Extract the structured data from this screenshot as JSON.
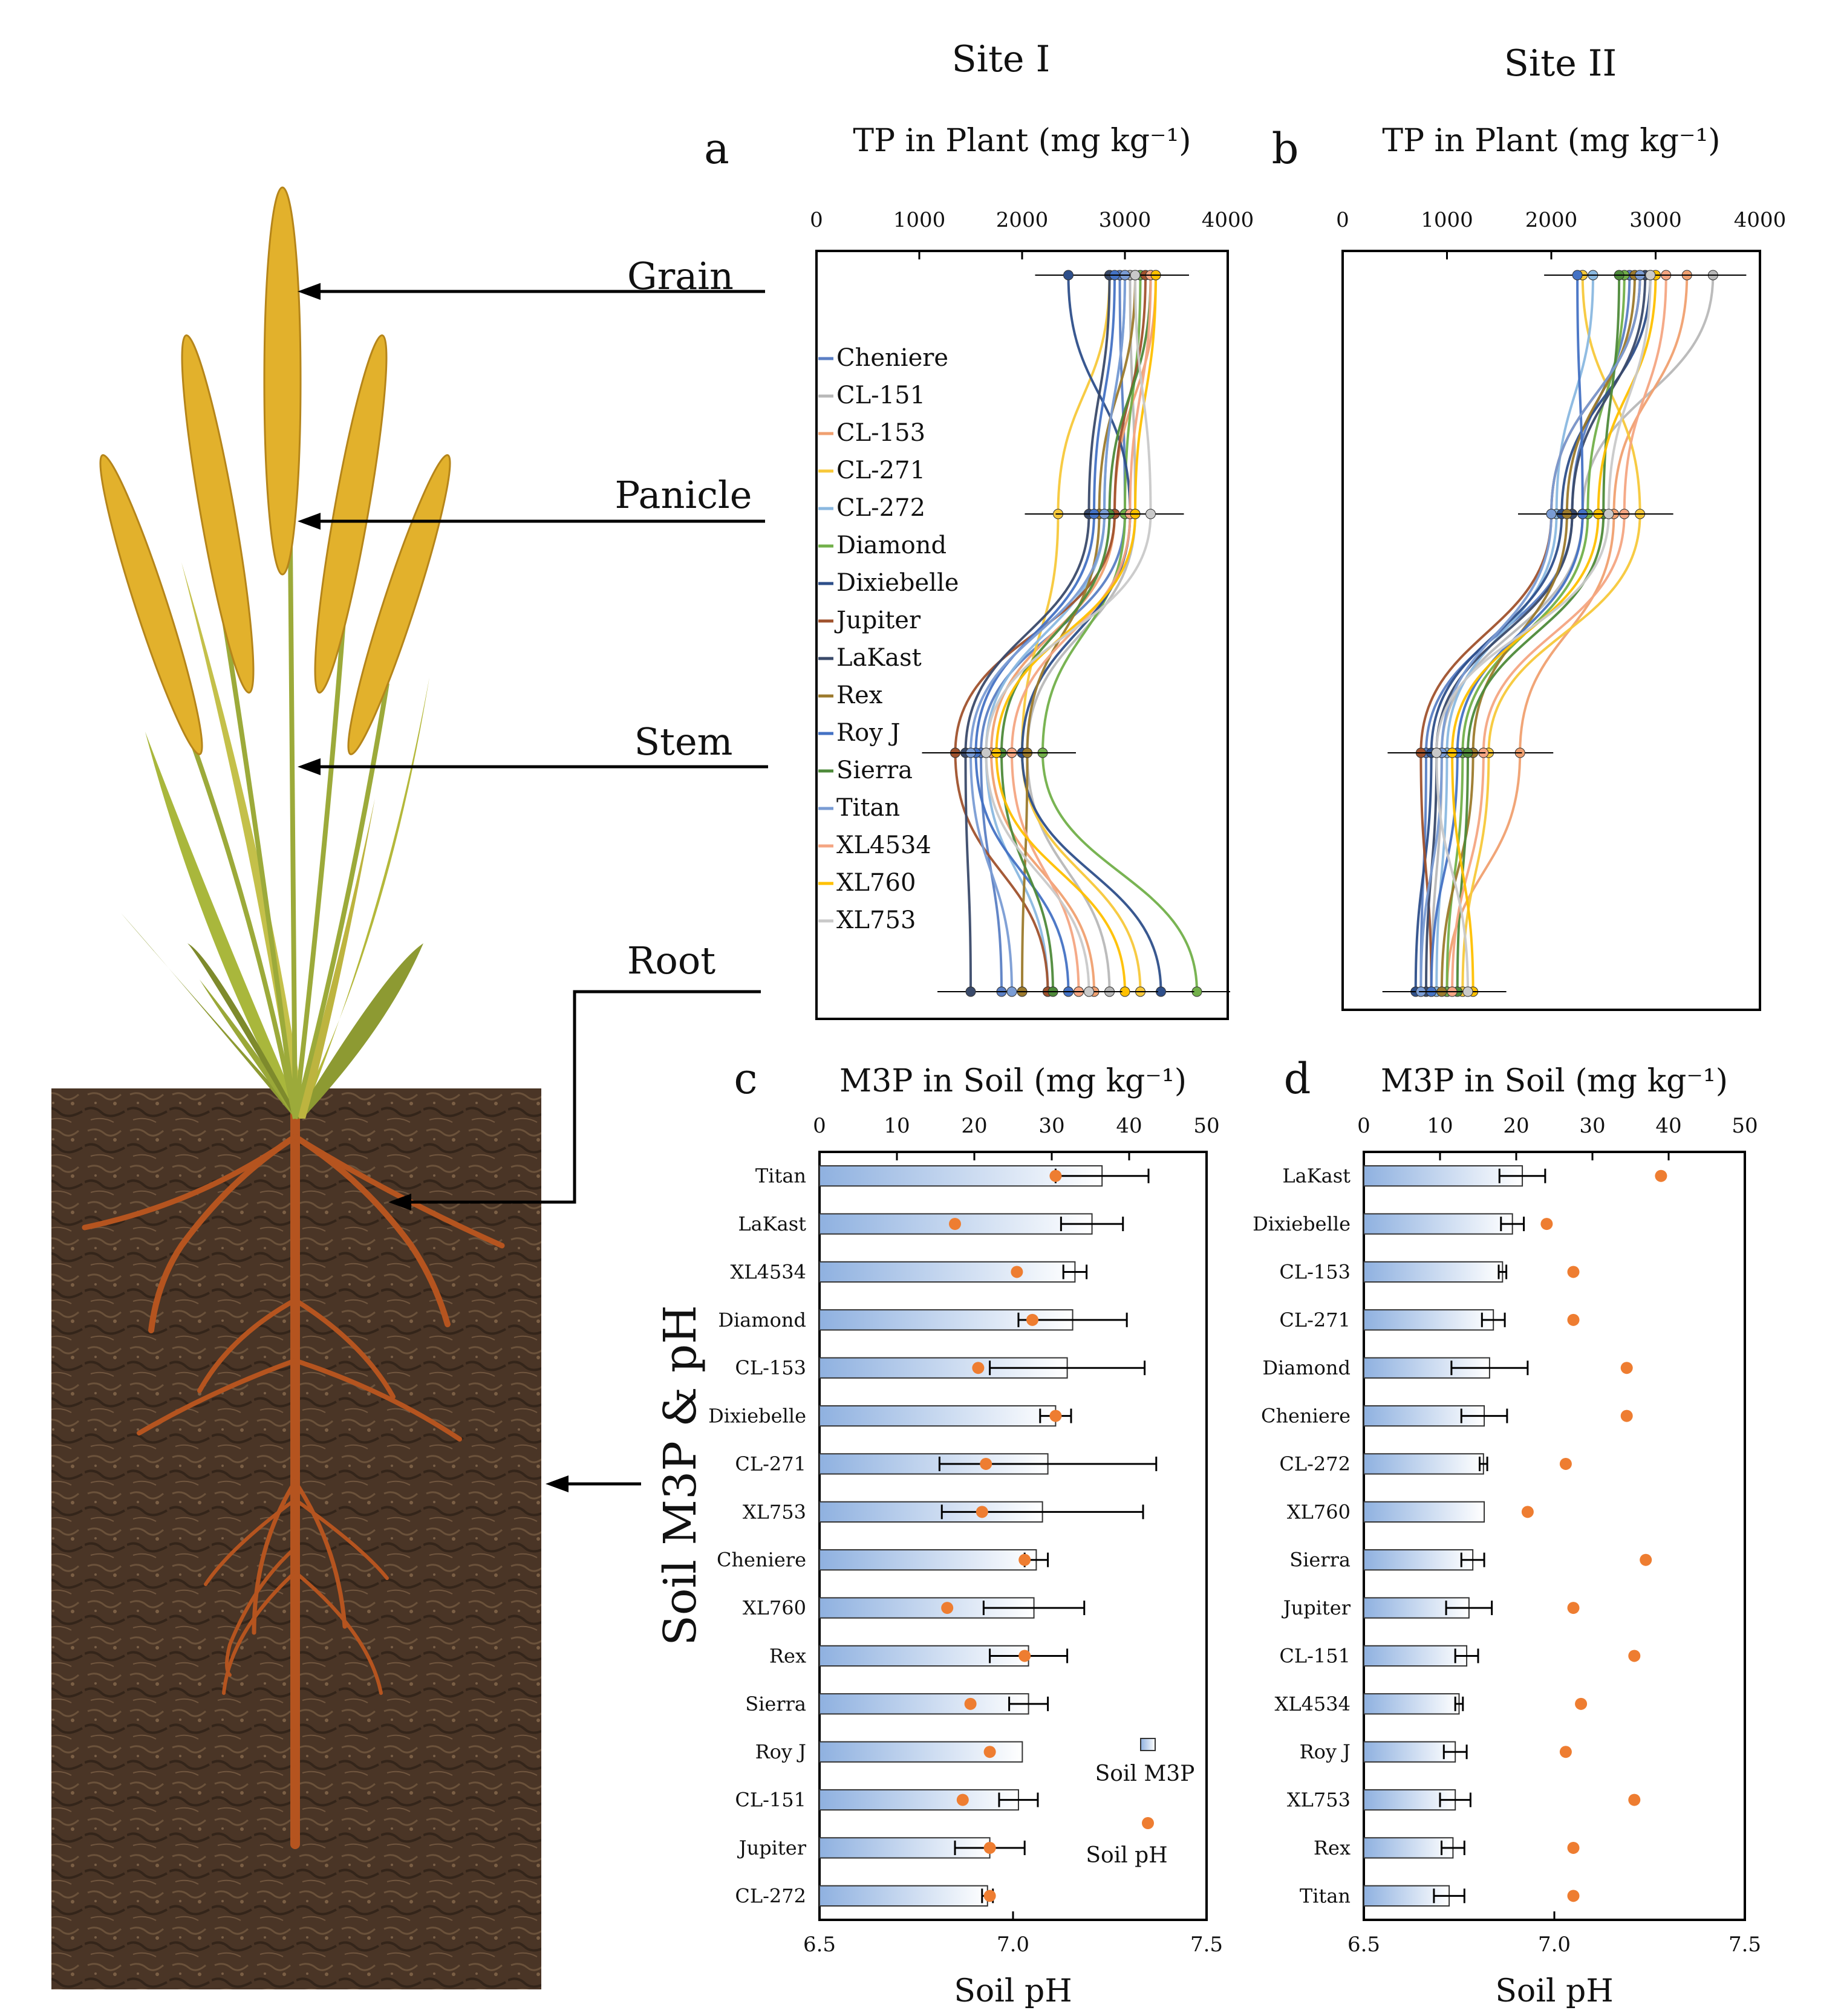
{
  "site_labels": [
    "Site I",
    "Site II"
  ],
  "organs": [
    "Grain",
    "Panicle",
    "Stem",
    "Root"
  ],
  "plant_illustration": {
    "icon": "rice-plant-with-roots-illustration"
  },
  "colors": {
    "bar_fill_start": "#8fb1e0",
    "bar_fill_end": "#ffffff",
    "ph_dot": "#ee7d31",
    "soil": "#4a3526",
    "root": "#b5541f",
    "grain": "#e2b12c",
    "leaf": "#a9b73c"
  },
  "chart_data": [
    {
      "id": "a",
      "panel_letter": "a",
      "type": "line",
      "title": "TP in Plant (mg kg⁻¹)",
      "x_axis": {
        "range": [
          0,
          4000
        ],
        "ticks": [
          0,
          1000,
          2000,
          3000,
          4000
        ],
        "position": "top"
      },
      "y_categories": [
        "Grain",
        "Panicle",
        "Stem",
        "Root"
      ],
      "legend": {
        "placement": "left-inside"
      },
      "series": [
        {
          "name": "Cheniere",
          "color": "#5b7fc4",
          "values": [
            2950,
            3000,
            1600,
            1800
          ]
        },
        {
          "name": "CL-151",
          "color": "#b8b8b8",
          "values": [
            3050,
            3100,
            2050,
            2850
          ]
        },
        {
          "name": "CL-153",
          "color": "#f0a070",
          "values": [
            3300,
            2900,
            1700,
            2700
          ]
        },
        {
          "name": "CL-271",
          "color": "#f7c83a",
          "values": [
            2850,
            2350,
            2000,
            3150
          ]
        },
        {
          "name": "CL-272",
          "color": "#8ab8e0",
          "values": [
            3000,
            2800,
            1650,
            2250
          ]
        },
        {
          "name": "Diamond",
          "color": "#72b04a",
          "values": [
            3150,
            3000,
            2200,
            3700
          ]
        },
        {
          "name": "Dixiebelle",
          "color": "#2e4f8a",
          "values": [
            2450,
            3050,
            2000,
            3350
          ]
        },
        {
          "name": "Jupiter",
          "color": "#a0522d",
          "values": [
            3200,
            2900,
            1350,
            2250
          ]
        },
        {
          "name": "LaKast",
          "color": "#3a4a6a",
          "values": [
            2850,
            2650,
            1450,
            1500
          ]
        },
        {
          "name": "Rex",
          "color": "#9c7a2c",
          "values": [
            3100,
            2750,
            2050,
            2000
          ]
        },
        {
          "name": "Roy J",
          "color": "#4472c4",
          "values": [
            2900,
            2700,
            1550,
            2450
          ]
        },
        {
          "name": "Sierra",
          "color": "#4e8a3a",
          "values": [
            3250,
            2850,
            1800,
            2300
          ]
        },
        {
          "name": "Titan",
          "color": "#7a9cd4",
          "values": [
            3000,
            2800,
            1500,
            1900
          ]
        },
        {
          "name": "XL4534",
          "color": "#f4a582",
          "values": [
            3250,
            3050,
            1900,
            2550
          ]
        },
        {
          "name": "XL760",
          "color": "#ffc000",
          "values": [
            3300,
            3100,
            1750,
            3000
          ]
        },
        {
          "name": "XL753",
          "color": "#c9c9c9",
          "values": [
            3100,
            3250,
            1650,
            2650
          ]
        }
      ]
    },
    {
      "id": "b",
      "panel_letter": "b",
      "type": "line",
      "title": "TP in Plant (mg kg⁻¹)",
      "x_axis": {
        "range": [
          0,
          4000
        ],
        "ticks": [
          0,
          1000,
          2000,
          3000,
          4000
        ],
        "position": "top"
      },
      "y_categories": [
        "Grain",
        "Panicle",
        "Stem",
        "Root"
      ],
      "series": [
        {
          "name": "Cheniere",
          "color": "#5b7fc4",
          "values": [
            2750,
            2200,
            800,
            750
          ]
        },
        {
          "name": "CL-151",
          "color": "#b8b8b8",
          "values": [
            3550,
            2300,
            950,
            850
          ]
        },
        {
          "name": "CL-153",
          "color": "#f0a070",
          "values": [
            3300,
            2600,
            1700,
            1000
          ]
        },
        {
          "name": "CL-271",
          "color": "#f7c83a",
          "values": [
            2300,
            2850,
            1400,
            1150
          ]
        },
        {
          "name": "CL-272",
          "color": "#8ab8e0",
          "values": [
            2400,
            2050,
            1000,
            900
          ]
        },
        {
          "name": "Diamond",
          "color": "#72b04a",
          "values": [
            2700,
            2350,
            1150,
            1000
          ]
        },
        {
          "name": "Dixiebelle",
          "color": "#2e4f8a",
          "values": [
            2950,
            2100,
            850,
            700
          ]
        },
        {
          "name": "Jupiter",
          "color": "#a0522d",
          "values": [
            2850,
            2000,
            750,
            850
          ]
        },
        {
          "name": "LaKast",
          "color": "#3a4a6a",
          "values": [
            2900,
            2200,
            900,
            800
          ]
        },
        {
          "name": "Rex",
          "color": "#9c7a2c",
          "values": [
            2800,
            2150,
            1250,
            950
          ]
        },
        {
          "name": "Roy J",
          "color": "#4472c4",
          "values": [
            2250,
            2300,
            1100,
            850
          ]
        },
        {
          "name": "Sierra",
          "color": "#4e8a3a",
          "values": [
            2650,
            2500,
            1200,
            1100
          ]
        },
        {
          "name": "Titan",
          "color": "#7a9cd4",
          "values": [
            2850,
            2000,
            950,
            750
          ]
        },
        {
          "name": "XL4534",
          "color": "#f4a582",
          "values": [
            3100,
            2700,
            1350,
            1050
          ]
        },
        {
          "name": "XL760",
          "color": "#ffc000",
          "values": [
            3000,
            2450,
            1050,
            1250
          ]
        },
        {
          "name": "XL753",
          "color": "#c9c9c9",
          "values": [
            2950,
            2550,
            900,
            1200
          ]
        }
      ]
    },
    {
      "id": "c",
      "panel_letter": "c",
      "type": "bar",
      "orientation": "horizontal",
      "title": "M3P in Soil (mg kg⁻¹)",
      "x_axis": {
        "range": [
          0,
          50
        ],
        "ticks": [
          0,
          10,
          20,
          30,
          40,
          50
        ],
        "position": "top"
      },
      "x2_axis": {
        "label": "Soil pH",
        "range": [
          6.5,
          7.5
        ],
        "ticks": [
          "6.5",
          "7.0",
          "7.5"
        ],
        "position": "bottom"
      },
      "ylabel": "Soil M3P & pH",
      "legend": {
        "placement": "bottom-right",
        "entries": [
          "Soil M3P",
          "Soil pH"
        ]
      },
      "categories": [
        "Titan",
        "LaKast",
        "XL4534",
        "Diamond",
        "CL-153",
        "Dixiebelle",
        "CL-271",
        "XL753",
        "Cheniere",
        "XL760",
        "Rex",
        "Sierra",
        "Roy J",
        "CL-151",
        "Jupiter",
        "CL-272"
      ],
      "m3p_values": [
        36.5,
        35.2,
        33.0,
        32.7,
        32.0,
        30.5,
        29.5,
        28.8,
        28.0,
        27.7,
        27.0,
        27.0,
        26.2,
        25.7,
        22.0,
        21.7
      ],
      "m3p_errors": [
        6.0,
        4.0,
        1.5,
        7.0,
        10.0,
        2.0,
        14.0,
        13.0,
        1.5,
        6.5,
        5.0,
        2.5,
        0.0,
        2.5,
        4.5,
        0.7
      ],
      "ph_values": [
        7.11,
        6.85,
        7.01,
        7.05,
        6.91,
        7.11,
        6.93,
        6.92,
        7.03,
        6.83,
        7.03,
        6.89,
        6.94,
        6.87,
        6.94,
        6.94
      ]
    },
    {
      "id": "d",
      "panel_letter": "d",
      "type": "bar",
      "orientation": "horizontal",
      "title": "M3P in Soil (mg kg⁻¹)",
      "x_axis": {
        "range": [
          0,
          50
        ],
        "ticks": [
          0,
          10,
          20,
          30,
          40,
          50
        ],
        "position": "top"
      },
      "x2_axis": {
        "label": "Soil pH",
        "range": [
          6.5,
          7.5
        ],
        "ticks": [
          "6.5",
          "7.0",
          "7.5"
        ],
        "position": "bottom"
      },
      "categories": [
        "LaKast",
        "Dixiebelle",
        "CL-153",
        "CL-271",
        "Diamond",
        "Cheniere",
        "CL-272",
        "XL760",
        "Sierra",
        "Jupiter",
        "CL-151",
        "XL4534",
        "Roy J",
        "XL753",
        "Rex",
        "Titan"
      ],
      "m3p_values": [
        20.8,
        19.5,
        18.2,
        17.0,
        16.5,
        15.8,
        15.7,
        15.8,
        14.3,
        13.8,
        13.5,
        12.5,
        12.0,
        12.0,
        11.7,
        11.2
      ],
      "m3p_errors": [
        3.0,
        1.5,
        0.5,
        1.5,
        5.0,
        3.0,
        0.5,
        0.0,
        1.5,
        3.0,
        1.5,
        0.5,
        1.5,
        2.0,
        1.5,
        2.0
      ],
      "ph_values": [
        7.28,
        6.98,
        7.05,
        7.05,
        7.19,
        7.19,
        7.03,
        6.93,
        7.24,
        7.05,
        7.21,
        7.07,
        7.03,
        7.21,
        7.05,
        7.05
      ]
    }
  ]
}
